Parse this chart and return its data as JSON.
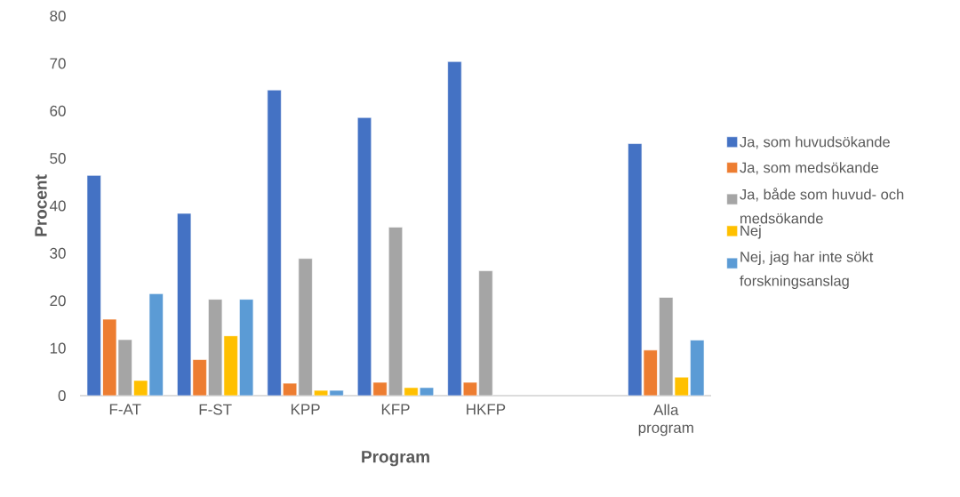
{
  "chart_data": {
    "type": "bar",
    "xlabel": "Program",
    "ylabel": "Procent",
    "categories": [
      "F-AT",
      "F-ST",
      "KPP",
      "KFP",
      "HKFP",
      null,
      "Alla program"
    ],
    "ylim": [
      0,
      80
    ],
    "yticks": [
      0,
      10,
      20,
      30,
      40,
      50,
      60,
      70,
      80
    ],
    "legend": "right",
    "series": [
      {
        "name": "Ja, som huvudsökande",
        "color": "#4472c4",
        "values": [
          46.4,
          38.4,
          64.4,
          58.6,
          70.4,
          null,
          53.1
        ]
      },
      {
        "name": "Ja, som medsökande",
        "color": "#ed7d31",
        "values": [
          16.1,
          7.6,
          2.6,
          2.8,
          2.8,
          null,
          9.6
        ]
      },
      {
        "name": "Ja, både som huvud- och medsökande",
        "color": "#a5a5a5",
        "values": [
          11.8,
          20.3,
          28.9,
          35.5,
          26.3,
          null,
          20.7
        ]
      },
      {
        "name": "Nej",
        "color": "#ffc000",
        "values": [
          3.2,
          12.6,
          1.1,
          1.7,
          null,
          null,
          3.9
        ]
      },
      {
        "name": "Nej, jag har inte sökt forskningsanslag",
        "color": "#5b9bd5",
        "values": [
          21.5,
          20.3,
          1.1,
          1.7,
          null,
          null,
          11.7
        ]
      }
    ]
  }
}
